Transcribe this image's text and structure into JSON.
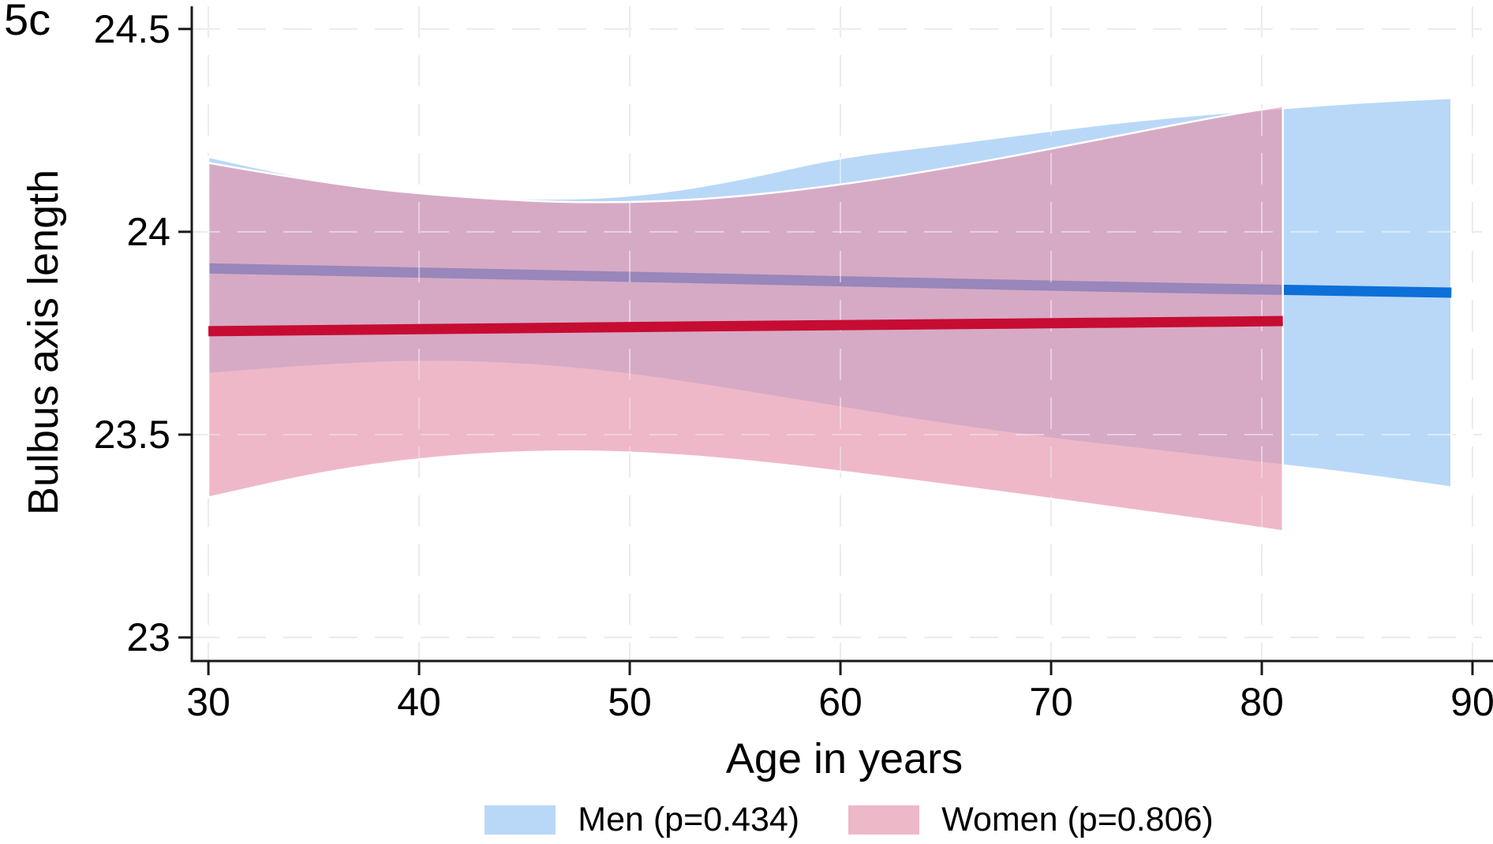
{
  "figure": {
    "panel_label": "5c"
  },
  "chart_data": {
    "type": "line",
    "subtype": "regression-lines-with-95ci-bands",
    "title": "",
    "xlabel": "Age in years",
    "ylabel": "Bulbus axis length",
    "xlim": [
      29.21,
      90.45
    ],
    "ylim": [
      22.942,
      24.556
    ],
    "x_ticks": {
      "values": [
        30,
        40,
        50,
        60,
        70,
        80,
        90
      ],
      "labels": [
        "30",
        "40",
        "50",
        "60",
        "70",
        "80",
        "90"
      ]
    },
    "y_ticks": {
      "values": [
        23,
        23.5,
        24,
        24.5
      ],
      "labels": [
        "23",
        "23.5",
        "24",
        "24.5"
      ]
    },
    "grid": "dashed",
    "background_color": "#ffffff",
    "axis_color": "#1a1a1a",
    "grid_color": "#dcdcdc",
    "grid_overlay_color": "rgba(255,255,255,0.45)",
    "legend_position": "bottom-center",
    "series": [
      {
        "name": "Men",
        "legend_label": "Men (p=0.434)",
        "line_color": "#0d6fd8",
        "band_fill": "#b9d8f7",
        "band_stroke": "#ffffff",
        "line": {
          "x": [
            30,
            45,
            60,
            75,
            81,
            89
          ],
          "y": [
            23.91,
            23.895,
            23.878,
            23.862,
            23.857,
            23.85
          ]
        },
        "ci": {
          "x": [
            30,
            35,
            40,
            45,
            50,
            55,
            60,
            65,
            70,
            75,
            81,
            85,
            89
          ],
          "upper": [
            24.185,
            24.125,
            24.095,
            24.08,
            24.085,
            24.125,
            24.185,
            24.215,
            24.25,
            24.28,
            24.305,
            24.32,
            24.33
          ],
          "lower": [
            23.65,
            23.67,
            23.682,
            23.675,
            23.65,
            23.61,
            23.567,
            23.525,
            23.49,
            23.46,
            23.425,
            23.4,
            23.37
          ]
        }
      },
      {
        "name": "Women",
        "legend_label": "Women (p=0.806)",
        "line_color": "#c60c33",
        "band_fill": "rgba(229,146,170,0.65)",
        "band_stroke": "#ffffff",
        "line": {
          "x": [
            30,
            45,
            60,
            75,
            81
          ],
          "y": [
            23.755,
            23.763,
            23.77,
            23.777,
            23.78
          ]
        },
        "ci": {
          "x": [
            30,
            36,
            42,
            48,
            54,
            60,
            66,
            72,
            78,
            81
          ],
          "upper": [
            24.17,
            24.115,
            24.085,
            24.07,
            24.08,
            24.115,
            24.165,
            24.225,
            24.285,
            24.31
          ],
          "lower": [
            23.345,
            23.415,
            23.452,
            23.462,
            23.445,
            23.41,
            23.37,
            23.328,
            23.285,
            23.262
          ]
        }
      }
    ],
    "legend": [
      {
        "label": "Men (p=0.434)",
        "swatch_color": "#b9d8f7"
      },
      {
        "label": "Women (p=0.806)",
        "swatch_color": "#edb8c8"
      }
    ]
  }
}
